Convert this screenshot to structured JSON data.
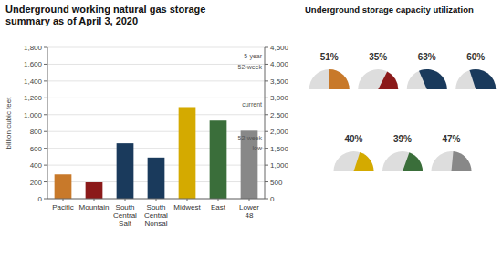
{
  "chart_data": [
    {
      "type": "bar",
      "title": "Underground working natural gas storage\nsummary as of April 3, 2020",
      "y_label": "billion cubic feet",
      "categories": [
        "Pacific",
        "Mountain",
        "South\nCentral\nSalt",
        "South\nCentral\nNonsal",
        "Midwest",
        "East",
        "Lower\n48"
      ],
      "colors": [
        "#c8792a",
        "#8b1a1a",
        "#1a3a5c",
        "#1a3a5c",
        "#d4aa00",
        "#3a6e3a",
        "#888888"
      ],
      "series": [
        {
          "values": [
            290,
            195,
            660,
            490,
            1090,
            930,
            null
          ]
        },
        {
          "values": [
            null,
            null,
            null,
            null,
            null,
            null,
            2024
          ],
          "axis": "y2"
        }
      ],
      "ylim": [
        0,
        1800
      ],
      "yticks": [
        0,
        200,
        400,
        600,
        800,
        {
          "value": 1000,
          "label": "1,000"
        },
        {
          "value": 1200,
          "label": "1,200"
        },
        {
          "value": 1400,
          "label": "1,400"
        },
        {
          "value": 1600,
          "label": "1,600"
        },
        {
          "value": 1800,
          "label": "1,800"
        }
      ],
      "y2lim": [
        0,
        4500
      ],
      "y2ticks": [
        0,
        500,
        {
          "value": 1000,
          "label": "1,000"
        },
        {
          "value": 1500,
          "label": "1,500"
        },
        {
          "value": 2000,
          "label": "2,000"
        },
        {
          "value": 2500,
          "label": "2,500"
        },
        {
          "value": 3000,
          "label": "3,000"
        },
        {
          "value": 3500,
          "label": "3,500"
        },
        {
          "value": 4000,
          "label": "4,000"
        },
        {
          "value": 4500,
          "label": "4,500"
        }
      ],
      "grid": true,
      "annotations": [
        "5-year",
        "52-week",
        "current",
        "52-week",
        "low"
      ]
    },
    {
      "type": "gauge",
      "title": "Underground storage capacity utilization",
      "values": [
        51,
        35,
        63,
        60,
        40,
        39,
        47
      ],
      "value_labels": [
        "51%",
        "35%",
        "63%",
        "60%",
        "40%",
        "39%",
        "47%"
      ],
      "colors": [
        "#c8792a",
        "#8b1a1a",
        "#1a3a5c",
        "#1a3a5c",
        "#d4aa00",
        "#3a6e3a",
        "#888888"
      ],
      "ylim": [
        0,
        100
      ],
      "data_labels": true
    }
  ]
}
